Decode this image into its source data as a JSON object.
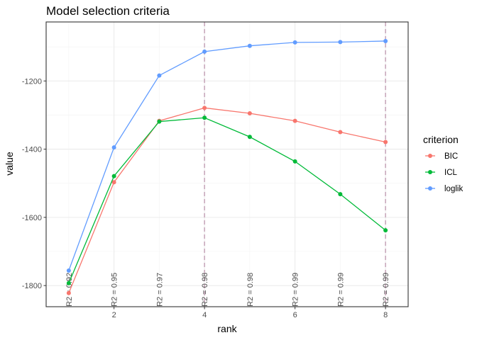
{
  "chart_data": {
    "type": "line",
    "title": "Model selection criteria",
    "xlabel": "rank",
    "ylabel": "value",
    "x": [
      1,
      2,
      3,
      4,
      5,
      6,
      7,
      8
    ],
    "xlim": [
      0.5,
      8.5
    ],
    "ylim": [
      -1862,
      -1027
    ],
    "x_ticks": [
      2,
      4,
      6,
      8
    ],
    "y_ticks": [
      -1200,
      -1400,
      -1600,
      -1800
    ],
    "grid": true,
    "series": [
      {
        "name": "BIC",
        "color": "#F8766D",
        "values": [
          -1822,
          -1497,
          -1317,
          -1279,
          -1295,
          -1317,
          -1350,
          -1379
        ]
      },
      {
        "name": "ICL",
        "color": "#00BA38",
        "values": [
          -1793,
          -1479,
          -1319,
          -1308,
          -1364,
          -1436,
          -1532,
          -1638
        ]
      },
      {
        "name": "loglik",
        "color": "#619CFF",
        "values": [
          -1756,
          -1395,
          -1184,
          -1114,
          -1097,
          -1087,
          -1086,
          -1083
        ]
      }
    ],
    "vlines": {
      "x": [
        4,
        8
      ],
      "color": "#c9a9bc"
    },
    "annotations": [
      "R2 = 0.92",
      "R2 = 0.95",
      "R2 = 0.97",
      "R2 = 0.98",
      "R2 = 0.98",
      "R2 = 0.99",
      "R2 = 0.99",
      "R2 = 0.99"
    ],
    "legend": {
      "title": "criterion",
      "placement": "right"
    }
  }
}
